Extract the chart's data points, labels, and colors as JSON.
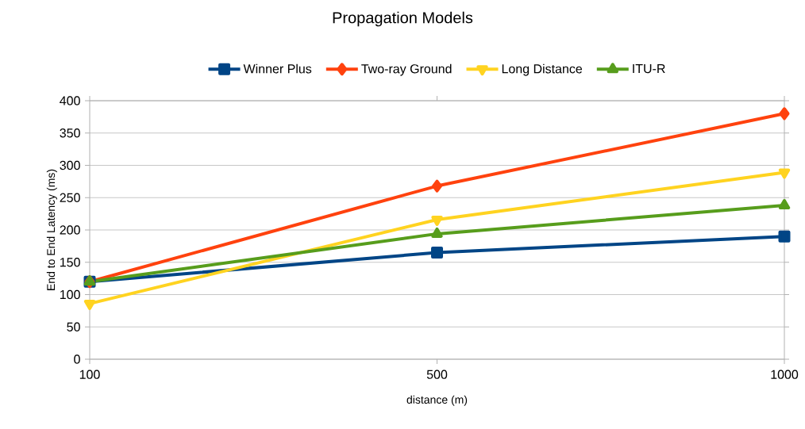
{
  "chart_data": {
    "type": "line",
    "title": "Propagation Models",
    "xlabel": "distance (m)",
    "ylabel": "End to End Latency (ms)",
    "categories": [
      "100",
      "500",
      "1000"
    ],
    "series": [
      {
        "name": "Winner Plus",
        "color": "#004586",
        "marker": "square",
        "values": [
          120,
          165,
          190
        ]
      },
      {
        "name": "Two-ray Ground",
        "color": "#ff420e",
        "marker": "diamond",
        "values": [
          120,
          268,
          380
        ]
      },
      {
        "name": "Long Distance",
        "color": "#ffd320",
        "marker": "triangle-down",
        "values": [
          86,
          216,
          289
        ]
      },
      {
        "name": "ITU-R",
        "color": "#579d1c",
        "marker": "triangle",
        "values": [
          120,
          194,
          238
        ]
      }
    ],
    "ylim": [
      0,
      400
    ],
    "yticks": [
      0,
      50,
      100,
      150,
      200,
      250,
      300,
      350,
      400
    ],
    "grid": "y",
    "legend": "top",
    "line_style": "solid"
  }
}
